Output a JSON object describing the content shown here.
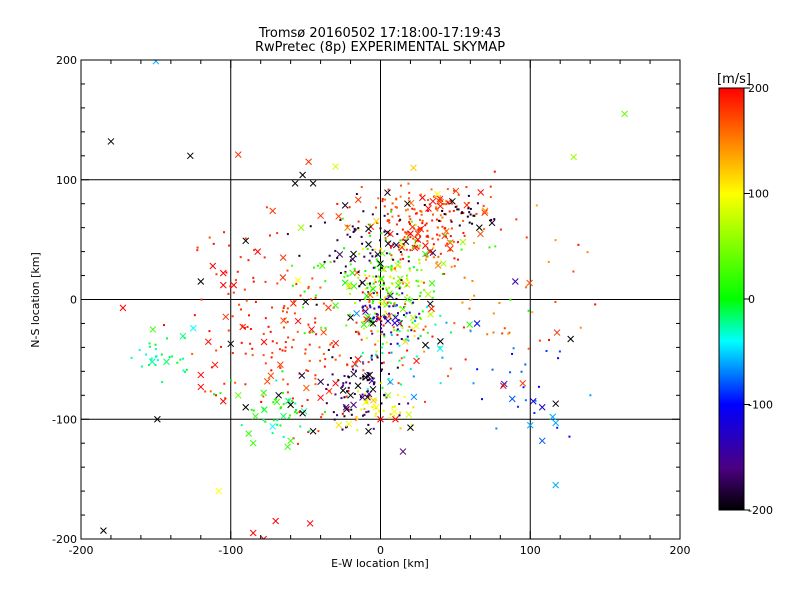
{
  "chart_data": {
    "type": "scatter",
    "title": "Tromsø 20160502 17:18:00-17:19:43",
    "subtitle": "RwPretec (8p) EXPERIMENTAL SKYMAP",
    "xlabel": "E-W location [km]",
    "ylabel": "N-S location [km]",
    "xlim": [
      -200,
      200
    ],
    "ylim": [
      -200,
      200
    ],
    "xticks": [
      "-200",
      "-100",
      "0",
      "100",
      "200"
    ],
    "yticks": [
      "-200",
      "-100",
      "0",
      "100",
      "200"
    ],
    "grid": "major lines at ±100 and 0",
    "colorbar": {
      "label": "[m/s]",
      "min": -200,
      "max": 200,
      "ticks": [
        "200",
        "100",
        "0",
        "-100",
        "-200"
      ],
      "colormap": "black-purple-blue-cyan-green-yellow-red"
    },
    "markers": {
      "cross": "x markers",
      "dot": "small dot markers"
    },
    "points": [
      {
        "x": -180,
        "y": 132,
        "v": -200,
        "m": "x"
      },
      {
        "x": -127,
        "y": 120,
        "v": -200,
        "m": "x"
      },
      {
        "x": -150,
        "y": 199,
        "v": -60,
        "m": "x"
      },
      {
        "x": -95,
        "y": 121,
        "v": 180,
        "m": "x"
      },
      {
        "x": -48,
        "y": 115,
        "v": 180,
        "m": "x"
      },
      {
        "x": -30,
        "y": 111,
        "v": 80,
        "m": "x"
      },
      {
        "x": 22,
        "y": 110,
        "v": 120,
        "m": "x"
      },
      {
        "x": 163,
        "y": 155,
        "v": 40,
        "m": "x"
      },
      {
        "x": 129,
        "y": 119,
        "v": 60,
        "m": "x"
      },
      {
        "x": -52,
        "y": 104,
        "v": -200,
        "m": "x"
      },
      {
        "x": -45,
        "y": 97,
        "v": -200,
        "m": "x"
      },
      {
        "x": -57,
        "y": 97,
        "v": -200,
        "m": "x"
      },
      {
        "x": 28,
        "y": 85,
        "v": 200,
        "m": "x"
      },
      {
        "x": 35,
        "y": 82,
        "v": 200,
        "m": "x"
      },
      {
        "x": 40,
        "y": 78,
        "v": 190,
        "m": "x"
      },
      {
        "x": 32,
        "y": 76,
        "v": 200,
        "m": "x"
      },
      {
        "x": 38,
        "y": 88,
        "v": 100,
        "m": "x"
      },
      {
        "x": 18,
        "y": 80,
        "v": -200,
        "m": "x"
      },
      {
        "x": 48,
        "y": 82,
        "v": -200,
        "m": "x"
      },
      {
        "x": 66,
        "y": 60,
        "v": -200,
        "m": "x"
      },
      {
        "x": -72,
        "y": 74,
        "v": 180,
        "m": "x"
      },
      {
        "x": -40,
        "y": 70,
        "v": 180,
        "m": "x"
      },
      {
        "x": -53,
        "y": 60,
        "v": 60,
        "m": "x"
      },
      {
        "x": -90,
        "y": 49,
        "v": -200,
        "m": "x"
      },
      {
        "x": -82,
        "y": 40,
        "v": 200,
        "m": "x"
      },
      {
        "x": -65,
        "y": 35,
        "v": 180,
        "m": "x"
      },
      {
        "x": -18,
        "y": 38,
        "v": -200,
        "m": "x"
      },
      {
        "x": -8,
        "y": 46,
        "v": -200,
        "m": "x"
      },
      {
        "x": 0,
        "y": 30,
        "v": -200,
        "m": "x"
      },
      {
        "x": -22,
        "y": 60,
        "v": 150,
        "m": "x"
      },
      {
        "x": 25,
        "y": 50,
        "v": 200,
        "m": "x"
      },
      {
        "x": 30,
        "y": 45,
        "v": 200,
        "m": "x"
      },
      {
        "x": 20,
        "y": 55,
        "v": 200,
        "m": "x"
      },
      {
        "x": 33,
        "y": 40,
        "v": 200,
        "m": "x"
      },
      {
        "x": 55,
        "y": 48,
        "v": 60,
        "m": "x"
      },
      {
        "x": 42,
        "y": 30,
        "v": 60,
        "m": "x"
      },
      {
        "x": -112,
        "y": 28,
        "v": 200,
        "m": "x"
      },
      {
        "x": -105,
        "y": 22,
        "v": 200,
        "m": "x"
      },
      {
        "x": -98,
        "y": 12,
        "v": 200,
        "m": "x"
      },
      {
        "x": -105,
        "y": 12,
        "v": 200,
        "m": "x"
      },
      {
        "x": -120,
        "y": 15,
        "v": -200,
        "m": "x"
      },
      {
        "x": -55,
        "y": 16,
        "v": 100,
        "m": "x"
      },
      {
        "x": -12,
        "y": 14,
        "v": -200,
        "m": "x"
      },
      {
        "x": 12,
        "y": 12,
        "v": 20,
        "m": "x"
      },
      {
        "x": 6,
        "y": 5,
        "v": 40,
        "m": "x"
      },
      {
        "x": 18,
        "y": 0,
        "v": 40,
        "m": "x"
      },
      {
        "x": -50,
        "y": -2,
        "v": -200,
        "m": "x"
      },
      {
        "x": -30,
        "y": -5,
        "v": 20,
        "m": "x"
      },
      {
        "x": -20,
        "y": -15,
        "v": -200,
        "m": "x"
      },
      {
        "x": -10,
        "y": -10,
        "v": -150,
        "m": "x"
      },
      {
        "x": 5,
        "y": -18,
        "v": -140,
        "m": "x"
      },
      {
        "x": 10,
        "y": -15,
        "v": -140,
        "m": "x"
      },
      {
        "x": 15,
        "y": -8,
        "v": 40,
        "m": "x"
      },
      {
        "x": -5,
        "y": -20,
        "v": -200,
        "m": "x"
      },
      {
        "x": -172,
        "y": -7,
        "v": 200,
        "m": "x"
      },
      {
        "x": -152,
        "y": -25,
        "v": 20,
        "m": "x"
      },
      {
        "x": -125,
        "y": -24,
        "v": -40,
        "m": "x"
      },
      {
        "x": -55,
        "y": -18,
        "v": 200,
        "m": "x"
      },
      {
        "x": -46,
        "y": -25,
        "v": 200,
        "m": "x"
      },
      {
        "x": 30,
        "y": -38,
        "v": -200,
        "m": "x"
      },
      {
        "x": 40,
        "y": -35,
        "v": -200,
        "m": "x"
      },
      {
        "x": -15,
        "y": -50,
        "v": 200,
        "m": "x"
      },
      {
        "x": -10,
        "y": -65,
        "v": -200,
        "m": "x"
      },
      {
        "x": -15,
        "y": -72,
        "v": -200,
        "m": "x"
      },
      {
        "x": -20,
        "y": -80,
        "v": -200,
        "m": "x"
      },
      {
        "x": -25,
        "y": -76,
        "v": -200,
        "m": "x"
      },
      {
        "x": -18,
        "y": -88,
        "v": -160,
        "m": "x"
      },
      {
        "x": -23,
        "y": -90,
        "v": -160,
        "m": "x"
      },
      {
        "x": -5,
        "y": -75,
        "v": -200,
        "m": "x"
      },
      {
        "x": -3,
        "y": -90,
        "v": 100,
        "m": "x"
      },
      {
        "x": 5,
        "y": -80,
        "v": 60,
        "m": "x"
      },
      {
        "x": -30,
        "y": -70,
        "v": 200,
        "m": "x"
      },
      {
        "x": -40,
        "y": -82,
        "v": 200,
        "m": "x"
      },
      {
        "x": -68,
        "y": -80,
        "v": -200,
        "m": "x"
      },
      {
        "x": -60,
        "y": -88,
        "v": -200,
        "m": "x"
      },
      {
        "x": -90,
        "y": -90,
        "v": -200,
        "m": "x"
      },
      {
        "x": -95,
        "y": -80,
        "v": 40,
        "m": "x"
      },
      {
        "x": -78,
        "y": -78,
        "v": 20,
        "m": "x"
      },
      {
        "x": -52,
        "y": -95,
        "v": -200,
        "m": "x"
      },
      {
        "x": -45,
        "y": -110,
        "v": -200,
        "m": "x"
      },
      {
        "x": -105,
        "y": -85,
        "v": 200,
        "m": "x"
      },
      {
        "x": -120,
        "y": -63,
        "v": 200,
        "m": "x"
      },
      {
        "x": -120,
        "y": -73,
        "v": 200,
        "m": "x"
      },
      {
        "x": -149,
        "y": -100,
        "v": -200,
        "m": "x"
      },
      {
        "x": -88,
        "y": -112,
        "v": 20,
        "m": "x"
      },
      {
        "x": -85,
        "y": -120,
        "v": 20,
        "m": "x"
      },
      {
        "x": -60,
        "y": -118,
        "v": 20,
        "m": "x"
      },
      {
        "x": -62,
        "y": -123,
        "v": 20,
        "m": "x"
      },
      {
        "x": -72,
        "y": -106,
        "v": -40,
        "m": "x"
      },
      {
        "x": -8,
        "y": -110,
        "v": -200,
        "m": "x"
      },
      {
        "x": 0,
        "y": -100,
        "v": 200,
        "m": "x"
      },
      {
        "x": 10,
        "y": -100,
        "v": 200,
        "m": "x"
      },
      {
        "x": 20,
        "y": -107,
        "v": -200,
        "m": "x"
      },
      {
        "x": 15,
        "y": -127,
        "v": -160,
        "m": "x"
      },
      {
        "x": 82,
        "y": -72,
        "v": 200,
        "m": "x"
      },
      {
        "x": 88,
        "y": -83,
        "v": -80,
        "m": "x"
      },
      {
        "x": 95,
        "y": -70,
        "v": 180,
        "m": "x"
      },
      {
        "x": 102,
        "y": -85,
        "v": -120,
        "m": "x"
      },
      {
        "x": 108,
        "y": -90,
        "v": -120,
        "m": "x"
      },
      {
        "x": 117,
        "y": -87,
        "v": -200,
        "m": "x"
      },
      {
        "x": 127,
        "y": -33,
        "v": -200,
        "m": "x"
      },
      {
        "x": 90,
        "y": 15,
        "v": -140,
        "m": "x"
      },
      {
        "x": 115,
        "y": -98,
        "v": -60,
        "m": "x"
      },
      {
        "x": 117,
        "y": -103,
        "v": -60,
        "m": "x"
      },
      {
        "x": 100,
        "y": -105,
        "v": -60,
        "m": "x"
      },
      {
        "x": 108,
        "y": -118,
        "v": -80,
        "m": "x"
      },
      {
        "x": 117,
        "y": -155,
        "v": -60,
        "m": "x"
      },
      {
        "x": -108,
        "y": -160,
        "v": 100,
        "m": "x"
      },
      {
        "x": -85,
        "y": -195,
        "v": 200,
        "m": "x"
      },
      {
        "x": -70,
        "y": -185,
        "v": 200,
        "m": "x"
      },
      {
        "x": -47,
        "y": -187,
        "v": 200,
        "m": "x"
      },
      {
        "x": -78,
        "y": -200,
        "v": 200,
        "m": "x"
      },
      {
        "x": -185,
        "y": -193,
        "v": -200,
        "m": "x"
      },
      {
        "x": -100,
        "y": -37,
        "v": -200,
        "m": "x"
      }
    ],
    "clusters": [
      {
        "cx": 30,
        "cy": 75,
        "sx": 22,
        "sy": 10,
        "n": 110,
        "v": [
          150,
          200
        ],
        "m": "dot"
      },
      {
        "cx": 55,
        "cy": 72,
        "sx": 12,
        "sy": 6,
        "n": 25,
        "v": [
          -200,
          -180
        ],
        "m": "dot"
      },
      {
        "cx": 28,
        "cy": 50,
        "sx": 14,
        "sy": 10,
        "n": 70,
        "v": [
          160,
          200
        ],
        "m": "dot"
      },
      {
        "cx": 5,
        "cy": 5,
        "sx": 14,
        "sy": 25,
        "n": 150,
        "v": [
          -10,
          120
        ],
        "m": "dot"
      },
      {
        "cx": 5,
        "cy": -15,
        "sx": 10,
        "sy": 10,
        "n": 60,
        "v": [
          -160,
          -110
        ],
        "m": "dot"
      },
      {
        "cx": -40,
        "cy": -40,
        "sx": 35,
        "sy": 30,
        "n": 180,
        "v": [
          160,
          200
        ],
        "m": "dot"
      },
      {
        "cx": -15,
        "cy": -75,
        "sx": 14,
        "sy": 15,
        "n": 80,
        "v": [
          -200,
          -150
        ],
        "m": "dot"
      },
      {
        "cx": 0,
        "cy": -90,
        "sx": 12,
        "sy": 10,
        "n": 40,
        "v": [
          80,
          130
        ],
        "m": "dot"
      },
      {
        "cx": -10,
        "cy": 40,
        "sx": 22,
        "sy": 20,
        "n": 70,
        "v": [
          -200,
          -170
        ],
        "m": "dot"
      },
      {
        "cx": 10,
        "cy": 20,
        "sx": 35,
        "sy": 25,
        "n": 60,
        "v": [
          -5,
          40
        ],
        "m": "dot"
      },
      {
        "cx": -145,
        "cy": -45,
        "sx": 10,
        "sy": 10,
        "n": 30,
        "v": [
          -40,
          0
        ],
        "m": "dot"
      },
      {
        "cx": -70,
        "cy": -90,
        "sx": 15,
        "sy": 15,
        "n": 40,
        "v": [
          -30,
          20
        ],
        "m": "dot"
      },
      {
        "cx": 60,
        "cy": 0,
        "sx": 40,
        "sy": 40,
        "n": 60,
        "v": [
          130,
          200
        ],
        "m": "dot"
      },
      {
        "cx": -90,
        "cy": 20,
        "sx": 25,
        "sy": 25,
        "n": 40,
        "v": [
          170,
          200
        ],
        "m": "dot"
      },
      {
        "cx": 90,
        "cy": -70,
        "sx": 25,
        "sy": 25,
        "n": 25,
        "v": [
          -110,
          -60
        ],
        "m": "dot"
      },
      {
        "cx": 15,
        "cy": -35,
        "sx": 20,
        "sy": 20,
        "n": 40,
        "v": [
          -70,
          -10
        ],
        "m": "dot"
      }
    ]
  }
}
